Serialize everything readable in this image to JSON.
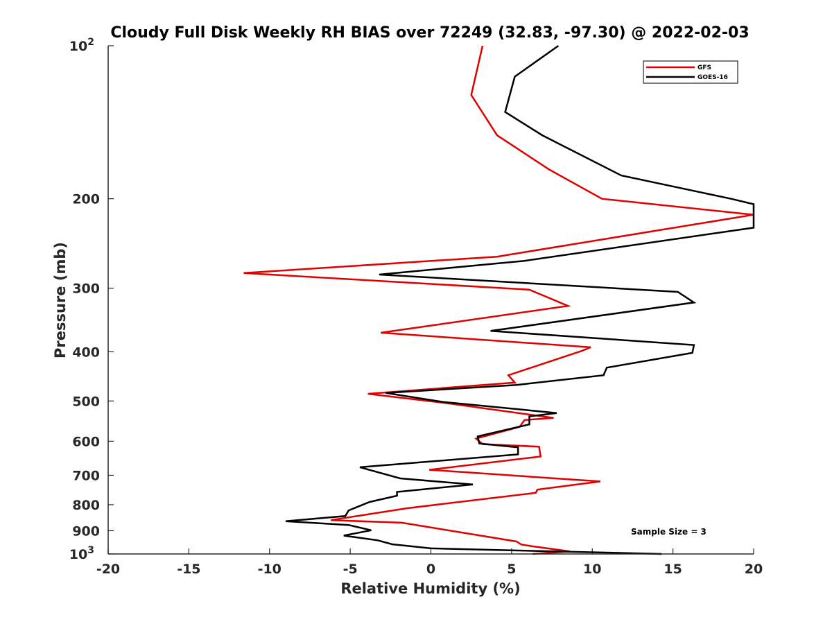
{
  "chart_data": {
    "type": "line",
    "title": "Cloudy Full Disk Weekly RH BIAS over 72249 (32.83, -97.30) @ 2022-02-03",
    "xlabel": "Relative Humidity (%)",
    "ylabel": "Pressure (mb)",
    "xlim": [
      -20,
      20
    ],
    "ylim": [
      100,
      1000
    ],
    "y_scale": "log",
    "y_reversed": true,
    "grid": false,
    "legend_position": "top-right",
    "x_ticks": [
      {
        "value": -20,
        "label": "-20"
      },
      {
        "value": -15,
        "label": "-15"
      },
      {
        "value": -10,
        "label": "-10"
      },
      {
        "value": -5,
        "label": "-5"
      },
      {
        "value": 0,
        "label": "0"
      },
      {
        "value": 5,
        "label": "5"
      },
      {
        "value": 10,
        "label": "10"
      },
      {
        "value": 15,
        "label": "15"
      },
      {
        "value": 20,
        "label": "20"
      }
    ],
    "y_ticks": [
      {
        "value": 100,
        "base": "10",
        "exp": "2"
      },
      {
        "value": 200,
        "base": "200",
        "exp": ""
      },
      {
        "value": 300,
        "base": "300",
        "exp": ""
      },
      {
        "value": 400,
        "base": "400",
        "exp": ""
      },
      {
        "value": 500,
        "base": "500",
        "exp": ""
      },
      {
        "value": 600,
        "base": "600",
        "exp": ""
      },
      {
        "value": 700,
        "base": "700",
        "exp": ""
      },
      {
        "value": 800,
        "base": "800",
        "exp": ""
      },
      {
        "value": 900,
        "base": "900",
        "exp": ""
      },
      {
        "value": 1000,
        "base": "10",
        "exp": "3"
      }
    ],
    "series": [
      {
        "name": "GFS",
        "color": "#e00000",
        "points": [
          [
            3.2,
            100
          ],
          [
            2.5,
            125
          ],
          [
            4.1,
            150
          ],
          [
            7.3,
            175
          ],
          [
            10.6,
            200
          ],
          [
            20.0,
            215
          ],
          [
            4.1,
            260
          ],
          [
            -11.6,
            280
          ],
          [
            6.1,
            302
          ],
          [
            8.5,
            325
          ],
          [
            -3.1,
            367
          ],
          [
            9.9,
            392
          ],
          [
            9.4,
            398
          ],
          [
            4.8,
            445
          ],
          [
            5.2,
            460
          ],
          [
            -3.9,
            484
          ],
          [
            1.0,
            505
          ],
          [
            7.6,
            540
          ],
          [
            5.8,
            545
          ],
          [
            5.5,
            562
          ],
          [
            2.8,
            593
          ],
          [
            3.2,
            608
          ],
          [
            6.7,
            615
          ],
          [
            6.8,
            643
          ],
          [
            -0.1,
            683
          ],
          [
            10.5,
            720
          ],
          [
            6.6,
            747
          ],
          [
            6.5,
            758
          ],
          [
            -1.5,
            813
          ],
          [
            -6.2,
            858
          ],
          [
            -1.8,
            868
          ],
          [
            5.3,
            945
          ],
          [
            5.6,
            958
          ],
          [
            6.4,
            967
          ],
          [
            8.6,
            988
          ],
          [
            6.3,
            1000
          ]
        ]
      },
      {
        "name": "GOES-16",
        "color": "#000000",
        "points": [
          [
            7.9,
            100
          ],
          [
            5.2,
            115
          ],
          [
            4.6,
            135
          ],
          [
            6.9,
            150
          ],
          [
            11.8,
            180
          ],
          [
            18.6,
            200
          ],
          [
            20.0,
            205
          ],
          [
            20.0,
            228
          ],
          [
            5.8,
            265
          ],
          [
            -3.2,
            282
          ],
          [
            15.3,
            305
          ],
          [
            16.3,
            320
          ],
          [
            3.7,
            364
          ],
          [
            16.3,
            388
          ],
          [
            16.2,
            402
          ],
          [
            10.9,
            430
          ],
          [
            10.7,
            445
          ],
          [
            5.3,
            465
          ],
          [
            -2.8,
            482
          ],
          [
            0.7,
            502
          ],
          [
            7.8,
            528
          ],
          [
            6.1,
            536
          ],
          [
            6.1,
            556
          ],
          [
            2.9,
            587
          ],
          [
            3.0,
            606
          ],
          [
            5.4,
            617
          ],
          [
            5.4,
            637
          ],
          [
            -4.4,
            675
          ],
          [
            -1.9,
            710
          ],
          [
            2.6,
            730
          ],
          [
            -2.1,
            755
          ],
          [
            -2.1,
            768
          ],
          [
            -3.8,
            790
          ],
          [
            -5.1,
            821
          ],
          [
            -5.3,
            842
          ],
          [
            -9.0,
            862
          ],
          [
            -5.1,
            877
          ],
          [
            -3.7,
            898
          ],
          [
            -5.4,
            920
          ],
          [
            -3.3,
            940
          ],
          [
            -2.4,
            957
          ],
          [
            0.0,
            975
          ],
          [
            14.3,
            1000
          ]
        ]
      }
    ],
    "annotations": [
      {
        "text": "Sample Size = 3"
      }
    ]
  }
}
